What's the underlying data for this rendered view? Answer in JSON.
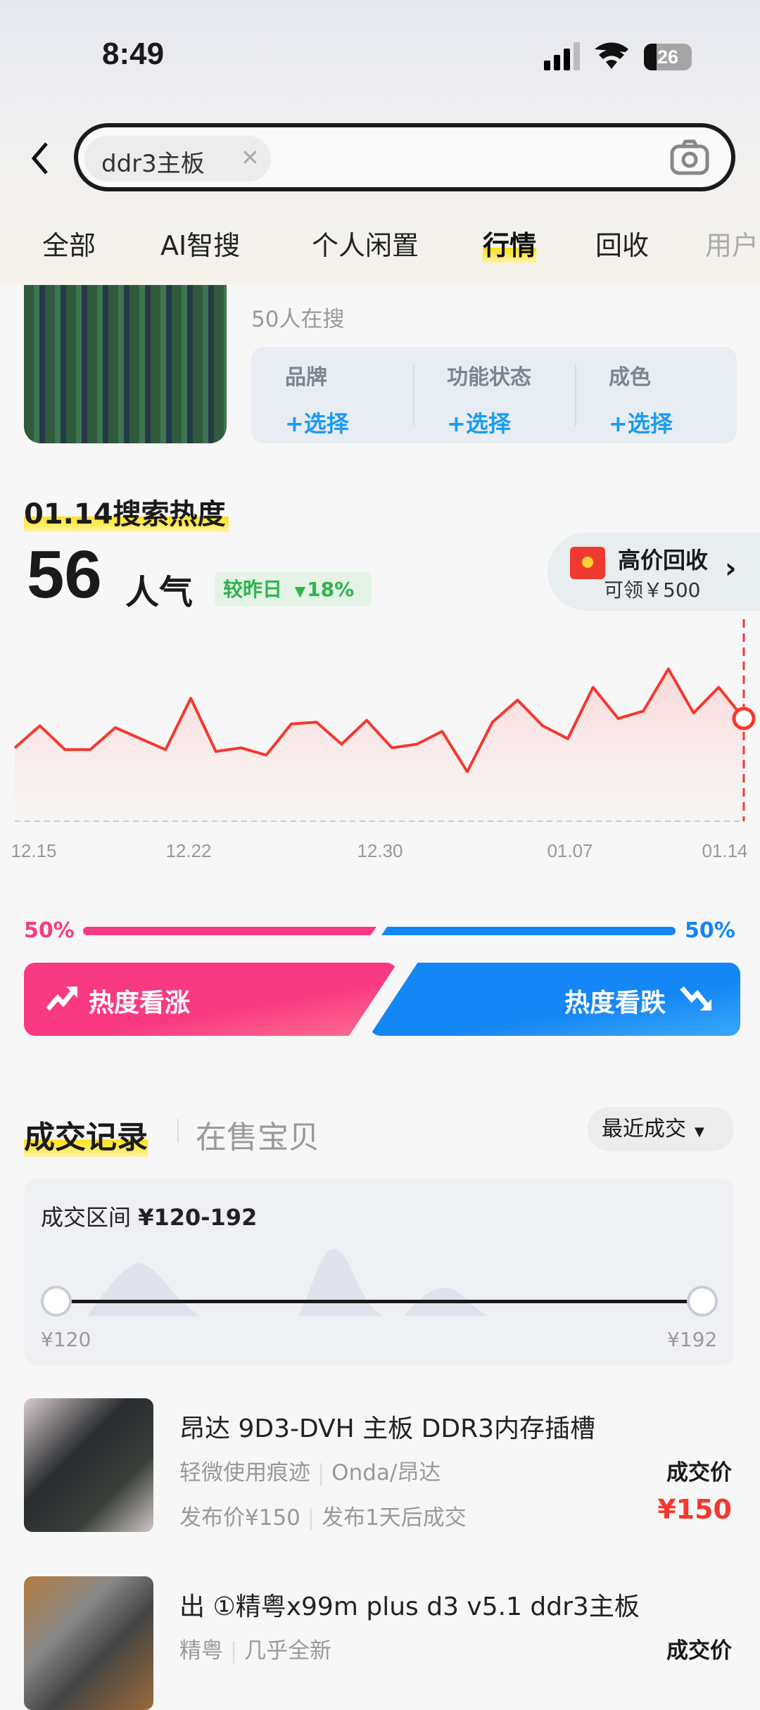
{
  "status": {
    "time": "8:49",
    "battery": "26"
  },
  "search": {
    "query": "ddr3主板",
    "camera": "camera-icon"
  },
  "tabs": [
    {
      "label": "全部"
    },
    {
      "label": "AI智搜"
    },
    {
      "label": "个人闲置"
    },
    {
      "label": "行情",
      "active": true
    },
    {
      "label": "回收"
    },
    {
      "label": "用户"
    }
  ],
  "product": {
    "searching": "50人在搜",
    "filters": [
      {
        "label": "品牌",
        "value": "+选择"
      },
      {
        "label": "功能状态",
        "value": "+选择"
      },
      {
        "label": "成色",
        "value": "+选择"
      }
    ]
  },
  "heat": {
    "title": "01.14搜索热度",
    "value": "56",
    "unit": "人气",
    "compare_label": "较昨日",
    "compare_value": "18%",
    "compare_direction": "down"
  },
  "recycle": {
    "title": "高价回收",
    "subtitle": "可领￥500"
  },
  "chart_data": {
    "type": "line",
    "x_ticks": [
      "12.15",
      "12.22",
      "12.30",
      "01.07",
      "01.14"
    ],
    "values": [
      40,
      52,
      39,
      39,
      51,
      45,
      39,
      67,
      38,
      40,
      36,
      53,
      54,
      42,
      55,
      40,
      42,
      49,
      27,
      54,
      66,
      52,
      45,
      73,
      56,
      60,
      83,
      59,
      73,
      56
    ],
    "line_color": "#f5382f",
    "area": true,
    "highlight_last": true,
    "grid": false
  },
  "vote": {
    "up_percent": "50%",
    "down_percent": "50%",
    "up_fraction": 0.5,
    "up_label": "热度看涨",
    "down_label": "热度看跌",
    "up_color": "#f93a82",
    "down_color": "#1486f6"
  },
  "records": {
    "tab_active": "成交记录",
    "tab_other": "在售宝贝",
    "sort": "最近成交",
    "range_label": "成交区间",
    "range_value": "¥120-192",
    "min": "¥120",
    "max": "¥192"
  },
  "items": [
    {
      "title": "昂达 9D3-DVH 主板 DDR3内存插槽",
      "tags": [
        "轻微使用痕迹",
        "Onda/昂达"
      ],
      "meta": [
        "发布价¥150",
        "发布1天后成交"
      ],
      "price_label": "成交价",
      "price": "¥150"
    },
    {
      "title": "出 ①精粤x99m plus d3 v5.1 ddr3主板",
      "tags": [
        "精粤",
        "几乎全新"
      ],
      "price_label": "成交价"
    }
  ]
}
